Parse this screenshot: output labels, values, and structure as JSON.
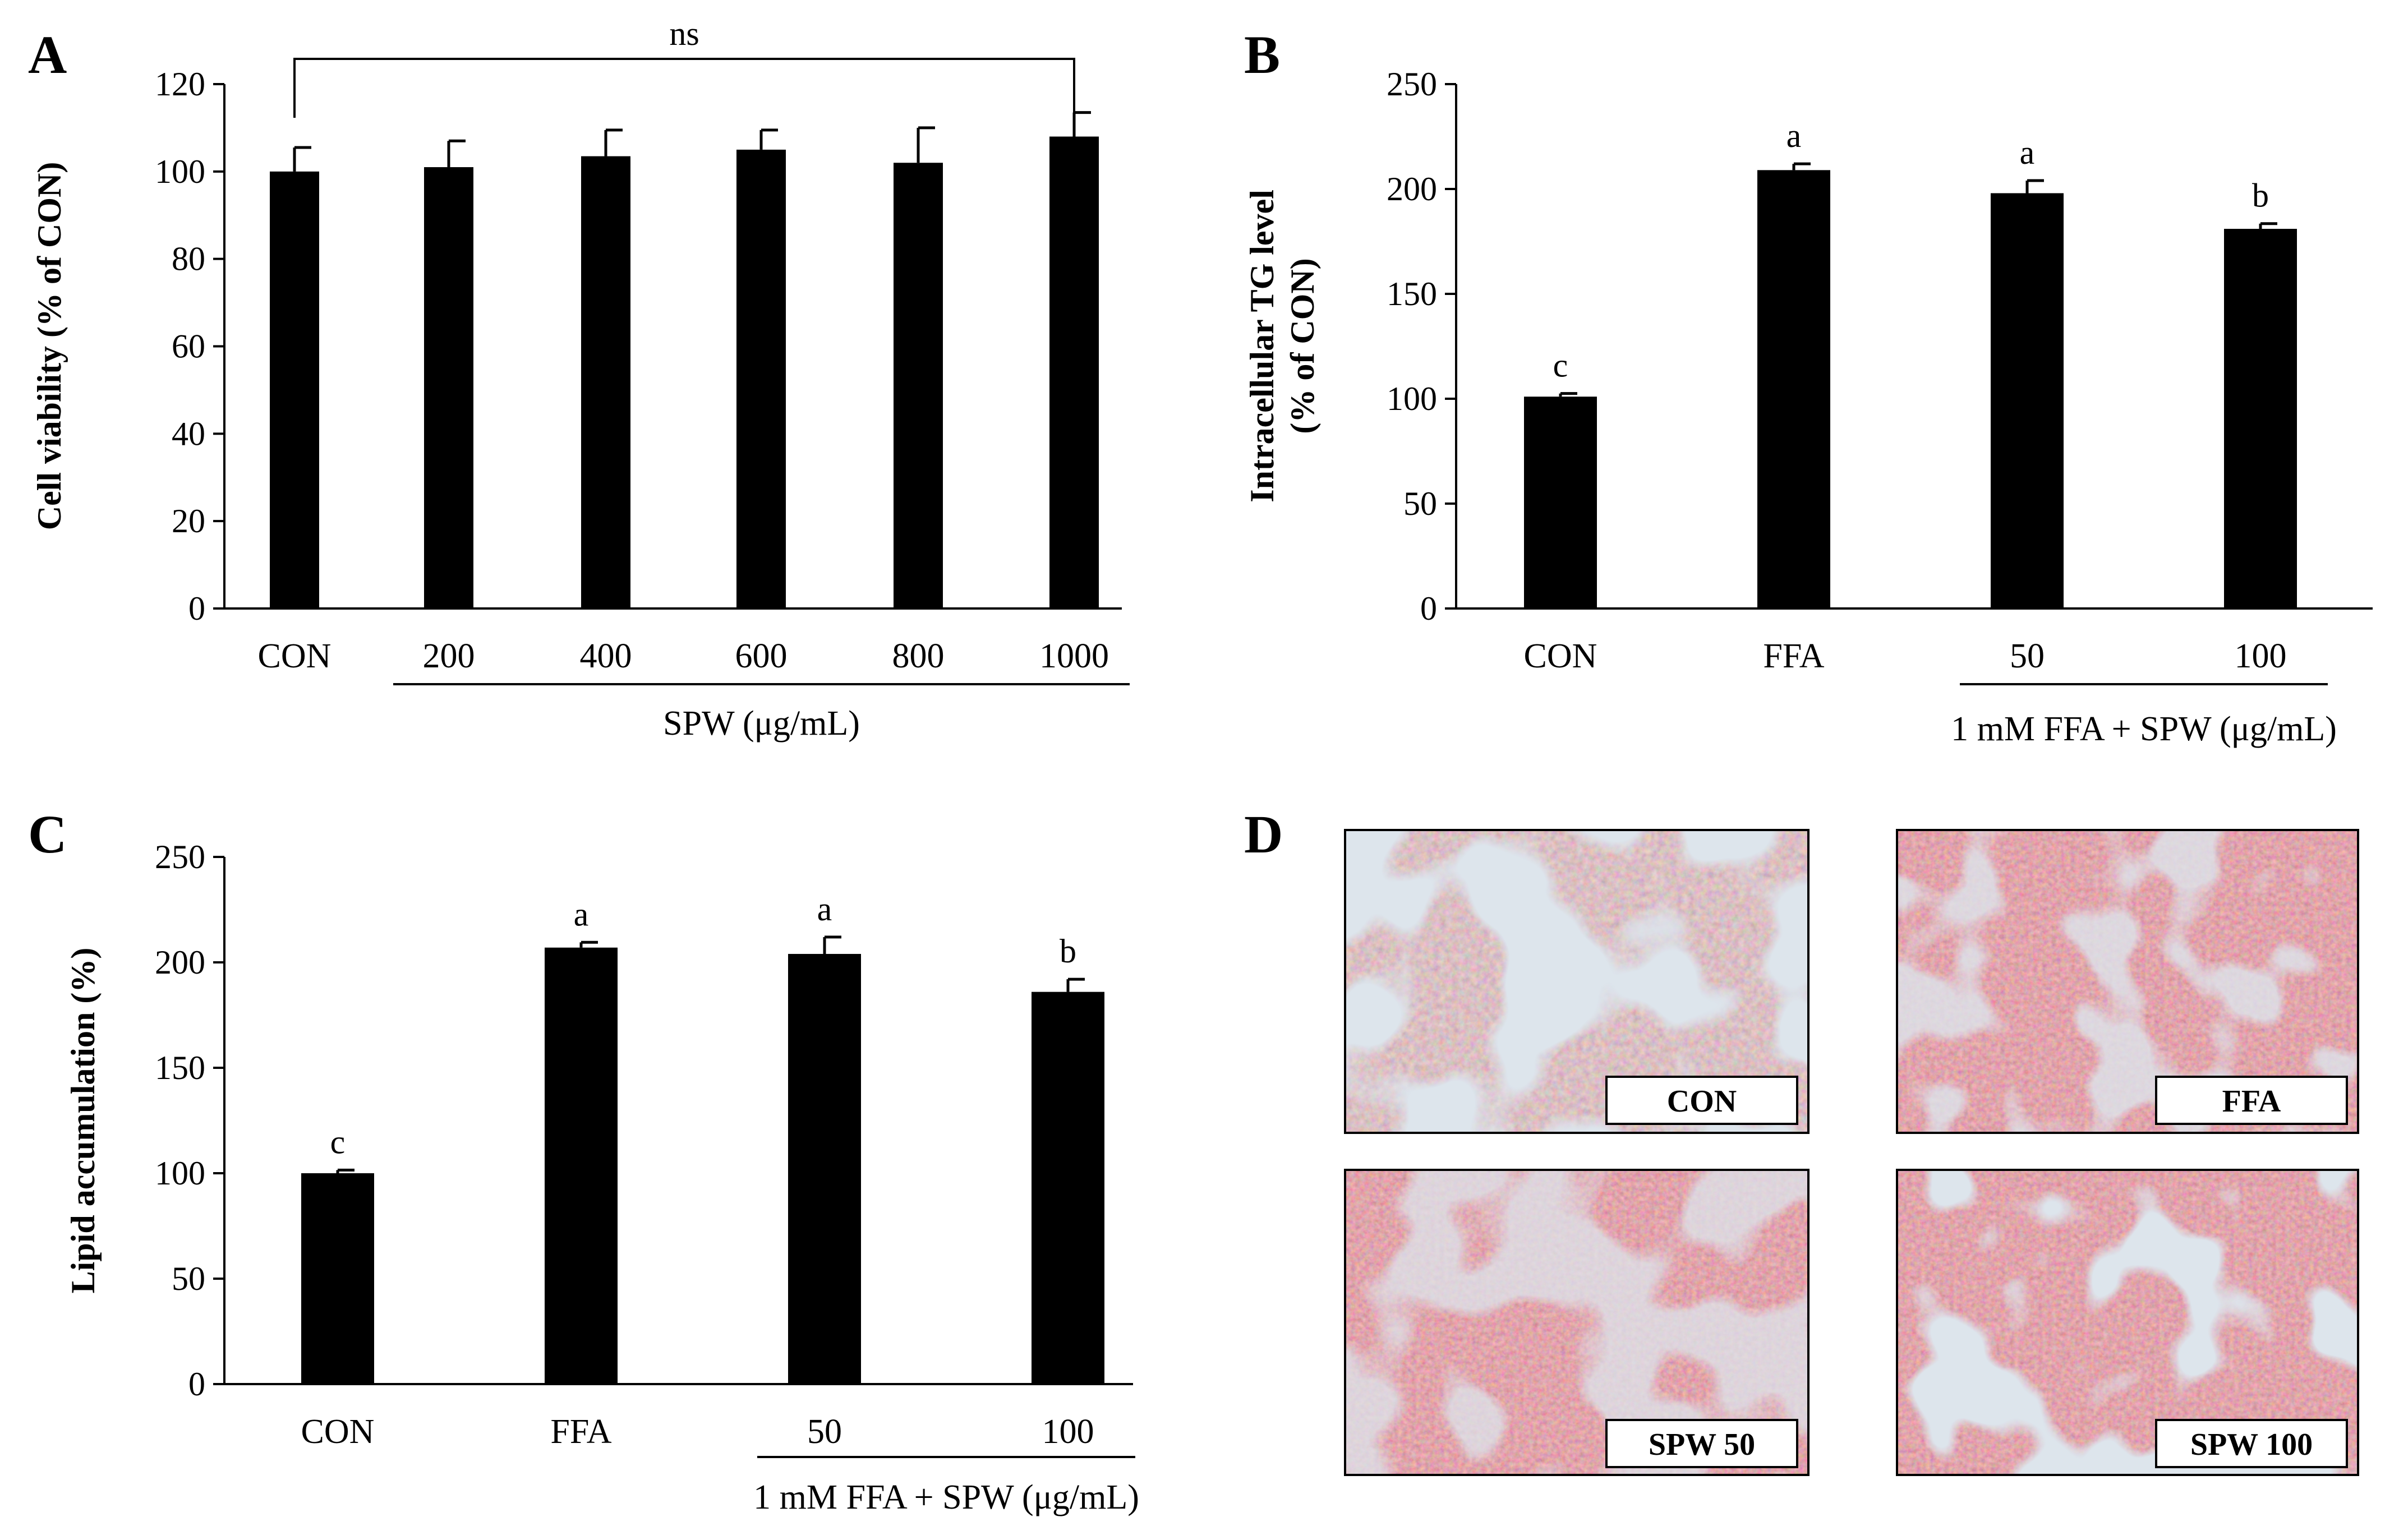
{
  "chart_data": [
    {
      "panel": "A",
      "type": "bar",
      "ylabel": "Cell viability (% of CON)",
      "ylim": [
        0,
        120
      ],
      "yticks": [
        0,
        20,
        40,
        60,
        80,
        100,
        120
      ],
      "categories": [
        "CON",
        "200",
        "400",
        "600",
        "800",
        "1000"
      ],
      "values": [
        100,
        101,
        103.5,
        105,
        102,
        108
      ],
      "errors": [
        5.5,
        6,
        6,
        4.5,
        8,
        5.5
      ],
      "group_label": {
        "text": "SPW (μg/mL)",
        "from_index": 1,
        "to_index": 5
      },
      "significance": {
        "text": "ns",
        "from_index": 0,
        "to_index": 5
      },
      "bar_color": "#000000",
      "grid": false
    },
    {
      "panel": "B",
      "type": "bar",
      "ylabel_lines": [
        "Intracellular TG level",
        "(% of CON)"
      ],
      "ylim": [
        0,
        250
      ],
      "yticks": [
        0,
        50,
        100,
        150,
        200,
        250
      ],
      "categories": [
        "CON",
        "FFA",
        "50",
        "100"
      ],
      "values": [
        101,
        209,
        198,
        181
      ],
      "errors": [
        1.5,
        3,
        6,
        2.5
      ],
      "letters": [
        "c",
        "a",
        "a",
        "b"
      ],
      "group_label": {
        "text": "1 mM FFA + SPW (μg/mL)",
        "from_index": 2,
        "to_index": 3
      },
      "bar_color": "#000000",
      "grid": false
    },
    {
      "panel": "C",
      "type": "bar",
      "ylabel": "Lipid accumulation (%)",
      "ylim": [
        0,
        250
      ],
      "yticks": [
        0,
        50,
        100,
        150,
        200,
        250
      ],
      "categories": [
        "CON",
        "FFA",
        "50",
        "100"
      ],
      "values": [
        100,
        207,
        204,
        186
      ],
      "errors": [
        1.5,
        2.5,
        8,
        6
      ],
      "letters": [
        "c",
        "a",
        "a",
        "b"
      ],
      "group_label": {
        "text": "1 mM FFA + SPW (μg/mL)",
        "from_index": 2,
        "to_index": 3
      },
      "bar_color": "#000000",
      "grid": false
    }
  ],
  "panel_d": {
    "letter": "D",
    "images": [
      {
        "label": "CON"
      },
      {
        "label": "FFA"
      },
      {
        "label": "SPW 50"
      },
      {
        "label": "SPW 100"
      }
    ]
  }
}
